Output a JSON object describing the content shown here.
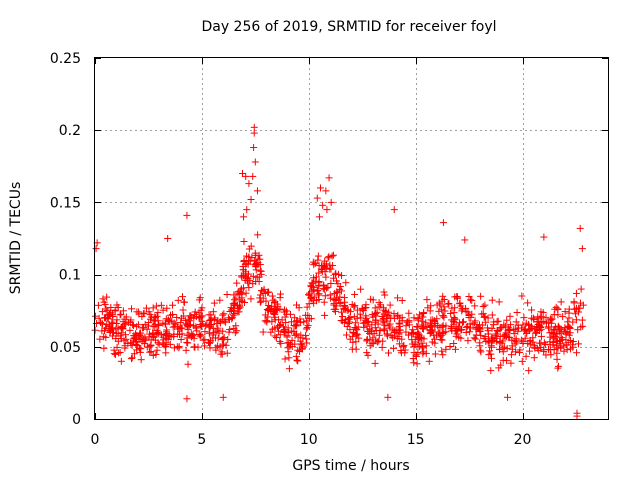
{
  "chart_data": {
    "type": "scatter",
    "title": "Day 256 of 2019, SRMTID for receiver foyl",
    "xlabel": "GPS time / hours",
    "ylabel": "SRMTID / TECUs",
    "xlim": [
      0,
      24
    ],
    "ylim": [
      0,
      0.25
    ],
    "x_ticks": [
      0,
      5,
      10,
      15,
      20
    ],
    "x_tick_labels": [
      "0",
      "5",
      "10",
      "15",
      "20"
    ],
    "y_ticks": [
      0,
      0.05,
      0.1,
      0.15,
      0.2,
      0.25
    ],
    "y_tick_labels": [
      "0",
      "0.05",
      "0.1",
      "0.15",
      "0.2",
      "0.25"
    ],
    "grid": true,
    "marker": "+",
    "series_color": "#ff0000",
    "outlier_points": [
      {
        "x": 7.45,
        "y": 0.202
      },
      {
        "x": 7.45,
        "y": 0.198
      },
      {
        "x": 7.42,
        "y": 0.188
      },
      {
        "x": 7.5,
        "y": 0.178
      },
      {
        "x": 7.38,
        "y": 0.168
      },
      {
        "x": 6.9,
        "y": 0.17
      },
      {
        "x": 7.05,
        "y": 0.168
      },
      {
        "x": 7.2,
        "y": 0.163
      },
      {
        "x": 7.6,
        "y": 0.158
      },
      {
        "x": 7.3,
        "y": 0.152
      },
      {
        "x": 7.1,
        "y": 0.145
      },
      {
        "x": 6.95,
        "y": 0.14
      },
      {
        "x": 10.95,
        "y": 0.167
      },
      {
        "x": 10.55,
        "y": 0.16
      },
      {
        "x": 10.8,
        "y": 0.158
      },
      {
        "x": 10.4,
        "y": 0.153
      },
      {
        "x": 11.05,
        "y": 0.15
      },
      {
        "x": 10.65,
        "y": 0.148
      },
      {
        "x": 10.85,
        "y": 0.145
      },
      {
        "x": 10.5,
        "y": 0.14
      },
      {
        "x": 4.3,
        "y": 0.141
      },
      {
        "x": 14.0,
        "y": 0.145
      },
      {
        "x": 16.3,
        "y": 0.136
      },
      {
        "x": 22.7,
        "y": 0.132
      },
      {
        "x": 22.8,
        "y": 0.118
      },
      {
        "x": 22.55,
        "y": 0.002
      },
      {
        "x": 22.55,
        "y": 0.004
      },
      {
        "x": 4.3,
        "y": 0.014
      },
      {
        "x": 6.0,
        "y": 0.015
      },
      {
        "x": 13.7,
        "y": 0.015
      },
      {
        "x": 19.3,
        "y": 0.015
      },
      {
        "x": 0.1,
        "y": 0.122
      },
      {
        "x": 0.05,
        "y": 0.118
      },
      {
        "x": 17.3,
        "y": 0.124
      },
      {
        "x": 21.0,
        "y": 0.126
      },
      {
        "x": 3.4,
        "y": 0.125
      }
    ],
    "generated_series_profile": {
      "x_start": 0.0,
      "x_end": 22.9,
      "points_per_hour": 60,
      "profile": [
        {
          "x": 0,
          "y": 0.075
        },
        {
          "x": 1,
          "y": 0.062
        },
        {
          "x": 2,
          "y": 0.058
        },
        {
          "x": 3,
          "y": 0.06
        },
        {
          "x": 4,
          "y": 0.063
        },
        {
          "x": 5,
          "y": 0.062
        },
        {
          "x": 6,
          "y": 0.06
        },
        {
          "x": 6.5,
          "y": 0.07
        },
        {
          "x": 7,
          "y": 0.1
        },
        {
          "x": 7.5,
          "y": 0.11
        },
        {
          "x": 8,
          "y": 0.08
        },
        {
          "x": 9,
          "y": 0.06
        },
        {
          "x": 9.8,
          "y": 0.055
        },
        {
          "x": 10.2,
          "y": 0.095
        },
        {
          "x": 11,
          "y": 0.1
        },
        {
          "x": 11.5,
          "y": 0.075
        },
        {
          "x": 12,
          "y": 0.065
        },
        {
          "x": 13,
          "y": 0.065
        },
        {
          "x": 14,
          "y": 0.068
        },
        {
          "x": 15,
          "y": 0.055
        },
        {
          "x": 16,
          "y": 0.065
        },
        {
          "x": 17,
          "y": 0.07
        },
        {
          "x": 18,
          "y": 0.062
        },
        {
          "x": 19,
          "y": 0.055
        },
        {
          "x": 20,
          "y": 0.058
        },
        {
          "x": 21,
          "y": 0.06
        },
        {
          "x": 22,
          "y": 0.058
        },
        {
          "x": 22.9,
          "y": 0.07
        }
      ],
      "spread": 0.045,
      "seed": 256
    }
  }
}
